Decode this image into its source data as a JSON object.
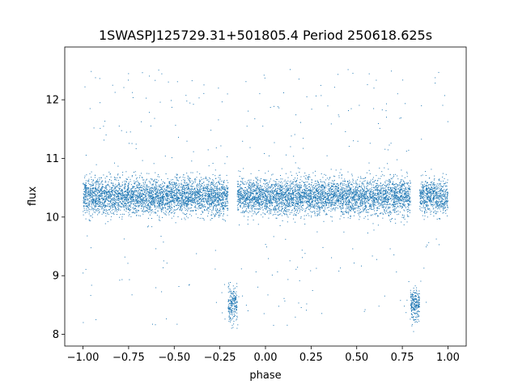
{
  "chart_data": {
    "type": "scatter",
    "title": "1SWASPJ125729.31+501805.4 Period 250618.625s",
    "xlabel": "phase",
    "ylabel": "flux",
    "xlim": [
      -1.1,
      1.1
    ],
    "ylim": [
      7.8,
      12.9
    ],
    "x_ticks": [
      -1.0,
      -0.75,
      -0.5,
      -0.25,
      0.0,
      0.25,
      0.5,
      0.75,
      1.0
    ],
    "x_tick_labels": [
      "−1.00",
      "−0.75",
      "−0.50",
      "−0.25",
      "0.00",
      "0.25",
      "0.50",
      "0.75",
      "1.00"
    ],
    "y_ticks": [
      8,
      9,
      10,
      11,
      12
    ],
    "y_tick_labels": [
      "8",
      "9",
      "10",
      "11",
      "12"
    ],
    "grid": false,
    "legend": "none",
    "marker_color": "#1f77b4",
    "series": [
      {
        "baseline_flux": 10.35,
        "baseline_scatter": 0.15,
        "eclipse_phases": [
          -0.18,
          0.82
        ],
        "eclipse_width": 0.05,
        "eclipse_min_flux": 8.5
      }
    ]
  }
}
